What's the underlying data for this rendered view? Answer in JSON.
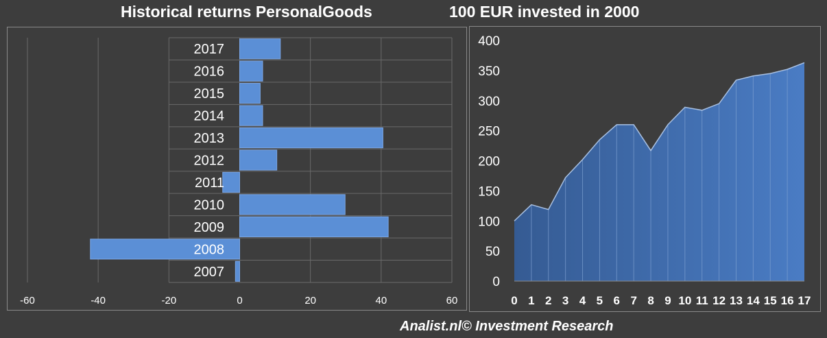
{
  "header": {
    "left_title": "Historical returns PersonalGoods",
    "right_title": "100 EUR invested in 2000"
  },
  "footer": {
    "credit": "Analist.nl© Investment Research"
  },
  "colors": {
    "background": "#3d3d3d",
    "bar_fill": "#5b8fd6",
    "area_fill": "#3e6bab",
    "area_line": "#a9c1e3",
    "grid": "#6a6a6a"
  },
  "chart_data": [
    {
      "type": "bar",
      "orientation": "horizontal",
      "title": "Historical returns PersonalGoods",
      "categories": [
        "2017",
        "2016",
        "2015",
        "2014",
        "2013",
        "2012",
        "2011",
        "2010",
        "2009",
        "2008",
        "2007"
      ],
      "values": [
        11.5,
        6.5,
        5.8,
        6.5,
        40.5,
        10.5,
        -4.8,
        29.8,
        42,
        -42.2,
        -1.2
      ],
      "xlim": [
        -60,
        60
      ],
      "xticks": [
        "-60",
        "-40",
        "-20",
        "0",
        "20",
        "40",
        "60"
      ],
      "grid": true,
      "xlabel": "",
      "ylabel": ""
    },
    {
      "type": "area",
      "title": "100 EUR invested in 2000",
      "x": [
        "0",
        "1",
        "2",
        "3",
        "4",
        "5",
        "6",
        "7",
        "8",
        "9",
        "10",
        "11",
        "12",
        "13",
        "14",
        "15",
        "16",
        "17"
      ],
      "values": [
        100,
        127,
        119,
        172,
        202,
        235,
        260,
        260,
        217,
        260,
        289,
        284,
        295,
        334,
        341,
        345,
        352,
        363
      ],
      "ylim": [
        0,
        400
      ],
      "yticks": [
        "0",
        "50",
        "100",
        "150",
        "200",
        "250",
        "300",
        "350",
        "400"
      ],
      "grid": false,
      "xlabel": "",
      "ylabel": ""
    }
  ]
}
